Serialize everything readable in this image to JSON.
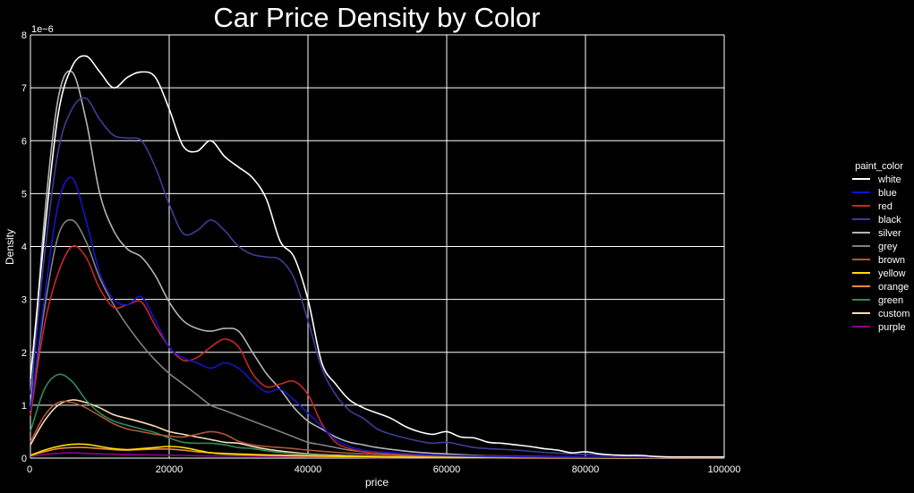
{
  "chart_data": {
    "type": "line",
    "title": "Car Price Density by Color",
    "xlabel": "price",
    "ylabel": "Density",
    "y_offset_label": "1e−6",
    "xlim": [
      0,
      100000
    ],
    "ylim": [
      0,
      8
    ],
    "x_ticks": [
      0,
      20000,
      40000,
      60000,
      80000,
      100000
    ],
    "x_tick_labels": [
      "0",
      "20000",
      "40000",
      "60000",
      "80000",
      "100000"
    ],
    "y_ticks": [
      0,
      1,
      2,
      3,
      4,
      5,
      6,
      7,
      8
    ],
    "y_tick_labels": [
      "0",
      "1",
      "2",
      "3",
      "4",
      "5",
      "6",
      "7",
      "8"
    ],
    "grid": true,
    "background": "#000000",
    "legend": {
      "title": "paint_color",
      "position": "right"
    },
    "series": [
      {
        "name": "white",
        "color": "#ffffff",
        "x": [
          0,
          2000,
          4000,
          6000,
          8000,
          10000,
          12000,
          14000,
          16000,
          18000,
          20000,
          22000,
          24000,
          26000,
          28000,
          30000,
          32000,
          34000,
          36000,
          38000,
          40000,
          42000,
          44000,
          46000,
          48000,
          50000,
          52000,
          54000,
          56000,
          58000,
          60000,
          62000,
          64000,
          66000,
          68000,
          70000,
          72000,
          74000,
          76000,
          78000,
          80000,
          82000,
          84000,
          86000,
          88000,
          90000,
          92000,
          94000,
          96000,
          98000,
          100000
        ],
        "y": [
          1.5,
          4.2,
          6.5,
          7.4,
          7.6,
          7.3,
          7.0,
          7.2,
          7.3,
          7.2,
          6.6,
          5.9,
          5.8,
          6.0,
          5.7,
          5.5,
          5.3,
          4.9,
          4.1,
          3.8,
          3.0,
          1.8,
          1.4,
          1.1,
          0.95,
          0.85,
          0.75,
          0.6,
          0.5,
          0.45,
          0.5,
          0.4,
          0.38,
          0.3,
          0.28,
          0.25,
          0.22,
          0.18,
          0.15,
          0.1,
          0.12,
          0.08,
          0.06,
          0.05,
          0.05,
          0.03,
          0.02,
          0.02,
          0.02,
          0.02,
          0.02
        ]
      },
      {
        "name": "blue",
        "color": "#1515c8",
        "x": [
          0,
          2000,
          4000,
          6000,
          8000,
          10000,
          12000,
          14000,
          16000,
          18000,
          20000,
          22000,
          24000,
          26000,
          28000,
          30000,
          32000,
          34000,
          36000,
          38000,
          40000,
          42000,
          44000,
          46000,
          48000,
          50000,
          55000,
          60000,
          70000,
          80000,
          90000,
          100000
        ],
        "y": [
          0.9,
          3.0,
          4.8,
          5.3,
          4.5,
          3.5,
          3.0,
          2.9,
          3.05,
          2.6,
          2.1,
          1.9,
          1.8,
          1.7,
          1.8,
          1.7,
          1.45,
          1.25,
          1.3,
          1.1,
          0.85,
          0.6,
          0.35,
          0.22,
          0.15,
          0.12,
          0.08,
          0.05,
          0.03,
          0.02,
          0.01,
          0.01
        ]
      },
      {
        "name": "red",
        "color": "#c82828",
        "x": [
          0,
          2000,
          4000,
          6000,
          8000,
          10000,
          12000,
          14000,
          16000,
          18000,
          20000,
          22000,
          24000,
          26000,
          28000,
          30000,
          32000,
          34000,
          36000,
          38000,
          40000,
          42000,
          44000,
          46000,
          48000,
          50000,
          55000,
          60000,
          70000,
          80000,
          90000,
          100000
        ],
        "y": [
          0.8,
          2.5,
          3.5,
          4.0,
          3.8,
          3.2,
          2.85,
          2.9,
          2.95,
          2.5,
          2.1,
          1.85,
          1.9,
          2.1,
          2.25,
          2.1,
          1.6,
          1.35,
          1.4,
          1.45,
          1.2,
          0.65,
          0.3,
          0.18,
          0.12,
          0.1,
          0.07,
          0.05,
          0.04,
          0.02,
          0.01,
          0.01
        ]
      },
      {
        "name": "black",
        "color": "#3d3d9a",
        "x": [
          0,
          2000,
          4000,
          6000,
          8000,
          10000,
          12000,
          14000,
          16000,
          18000,
          20000,
          22000,
          24000,
          26000,
          28000,
          30000,
          32000,
          34000,
          36000,
          38000,
          40000,
          42000,
          44000,
          46000,
          48000,
          50000,
          52000,
          54000,
          56000,
          58000,
          60000,
          62000,
          64000,
          66000,
          70000,
          75000,
          80000,
          85000,
          90000,
          95000,
          100000
        ],
        "y": [
          1.2,
          3.8,
          5.8,
          6.6,
          6.8,
          6.4,
          6.1,
          6.05,
          6.0,
          5.5,
          4.8,
          4.25,
          4.3,
          4.5,
          4.3,
          4.0,
          3.85,
          3.8,
          3.75,
          3.4,
          2.6,
          1.7,
          1.2,
          0.9,
          0.75,
          0.55,
          0.45,
          0.38,
          0.32,
          0.28,
          0.3,
          0.25,
          0.2,
          0.18,
          0.15,
          0.1,
          0.07,
          0.05,
          0.03,
          0.02,
          0.02
        ]
      },
      {
        "name": "silver",
        "color": "#b4b4b4",
        "x": [
          0,
          2000,
          4000,
          6000,
          8000,
          10000,
          12000,
          14000,
          16000,
          18000,
          20000,
          22000,
          24000,
          26000,
          28000,
          30000,
          32000,
          34000,
          36000,
          38000,
          40000,
          42000,
          44000,
          46000,
          48000,
          50000,
          55000,
          60000,
          65000,
          70000,
          80000,
          90000,
          100000
        ],
        "y": [
          1.0,
          4.5,
          6.8,
          7.3,
          6.4,
          5.0,
          4.3,
          3.95,
          3.8,
          3.45,
          2.95,
          2.6,
          2.45,
          2.4,
          2.45,
          2.4,
          2.0,
          1.6,
          1.3,
          0.95,
          0.7,
          0.55,
          0.4,
          0.3,
          0.25,
          0.2,
          0.12,
          0.08,
          0.05,
          0.03,
          0.02,
          0.01,
          0.01
        ]
      },
      {
        "name": "grey",
        "color": "#808080",
        "x": [
          0,
          2000,
          4000,
          6000,
          8000,
          10000,
          12000,
          14000,
          16000,
          18000,
          20000,
          22000,
          24000,
          26000,
          28000,
          30000,
          32000,
          34000,
          36000,
          38000,
          40000,
          42000,
          44000,
          46000,
          48000,
          50000,
          55000,
          60000,
          70000,
          80000,
          90000,
          100000
        ],
        "y": [
          0.9,
          2.8,
          4.2,
          4.5,
          4.1,
          3.4,
          2.9,
          2.5,
          2.15,
          1.85,
          1.6,
          1.4,
          1.2,
          1.0,
          0.9,
          0.8,
          0.7,
          0.6,
          0.5,
          0.4,
          0.3,
          0.25,
          0.2,
          0.15,
          0.12,
          0.1,
          0.06,
          0.04,
          0.02,
          0.01,
          0.01,
          0.01
        ]
      },
      {
        "name": "brown",
        "color": "#b0553a",
        "x": [
          0,
          2000,
          4000,
          6000,
          8000,
          10000,
          12000,
          14000,
          16000,
          18000,
          20000,
          22000,
          24000,
          26000,
          28000,
          30000,
          32000,
          34000,
          36000,
          38000,
          40000,
          45000,
          50000,
          55000,
          60000,
          70000,
          80000,
          90000,
          100000
        ],
        "y": [
          0.3,
          0.8,
          1.05,
          1.05,
          0.95,
          0.8,
          0.65,
          0.55,
          0.5,
          0.45,
          0.42,
          0.4,
          0.45,
          0.5,
          0.45,
          0.32,
          0.25,
          0.22,
          0.2,
          0.18,
          0.15,
          0.1,
          0.07,
          0.05,
          0.04,
          0.02,
          0.01,
          0.01,
          0.01
        ]
      },
      {
        "name": "yellow",
        "color": "#ffdd00",
        "x": [
          0,
          2000,
          4000,
          6000,
          8000,
          10000,
          12000,
          14000,
          16000,
          18000,
          20000,
          22000,
          24000,
          26000,
          28000,
          30000,
          35000,
          40000,
          45000,
          50000,
          60000,
          70000,
          80000,
          90000,
          100000
        ],
        "y": [
          0.05,
          0.15,
          0.22,
          0.26,
          0.26,
          0.22,
          0.18,
          0.16,
          0.18,
          0.2,
          0.22,
          0.2,
          0.15,
          0.1,
          0.08,
          0.07,
          0.05,
          0.04,
          0.03,
          0.02,
          0.01,
          0.01,
          0.0,
          0.0,
          0.0
        ]
      },
      {
        "name": "orange",
        "color": "#f08a3c",
        "x": [
          0,
          2000,
          4000,
          6000,
          8000,
          10000,
          12000,
          14000,
          16000,
          18000,
          20000,
          22000,
          24000,
          26000,
          28000,
          30000,
          35000,
          40000,
          45000,
          50000,
          60000,
          70000,
          80000,
          90000,
          100000
        ],
        "y": [
          0.05,
          0.12,
          0.18,
          0.2,
          0.2,
          0.18,
          0.16,
          0.15,
          0.16,
          0.17,
          0.17,
          0.15,
          0.12,
          0.1,
          0.09,
          0.08,
          0.06,
          0.05,
          0.04,
          0.03,
          0.02,
          0.01,
          0.01,
          0.0,
          0.0
        ]
      },
      {
        "name": "green",
        "color": "#2e8b57",
        "x": [
          0,
          2000,
          4000,
          6000,
          8000,
          10000,
          12000,
          14000,
          16000,
          18000,
          20000,
          22000,
          24000,
          26000,
          28000,
          30000,
          32000,
          35000,
          40000,
          45000,
          50000,
          60000,
          70000,
          80000,
          90000,
          100000
        ],
        "y": [
          0.5,
          1.3,
          1.58,
          1.45,
          1.1,
          0.85,
          0.7,
          0.62,
          0.55,
          0.48,
          0.38,
          0.3,
          0.28,
          0.28,
          0.25,
          0.2,
          0.18,
          0.12,
          0.07,
          0.04,
          0.02,
          0.01,
          0.01,
          0.0,
          0.0,
          0.0
        ]
      },
      {
        "name": "custom",
        "color": "#f5deb3",
        "x": [
          0,
          2000,
          4000,
          6000,
          8000,
          10000,
          12000,
          14000,
          16000,
          18000,
          20000,
          22000,
          24000,
          26000,
          28000,
          30000,
          32000,
          35000,
          40000,
          45000,
          50000,
          60000,
          70000,
          80000,
          90000,
          100000
        ],
        "y": [
          0.25,
          0.7,
          1.0,
          1.1,
          1.05,
          0.95,
          0.82,
          0.75,
          0.68,
          0.6,
          0.5,
          0.45,
          0.4,
          0.35,
          0.3,
          0.28,
          0.22,
          0.15,
          0.08,
          0.05,
          0.03,
          0.02,
          0.01,
          0.01,
          0.0,
          0.0
        ]
      },
      {
        "name": "purple",
        "color": "#8b008b",
        "x": [
          0,
          2000,
          4000,
          6000,
          8000,
          10000,
          14000,
          18000,
          22000,
          26000,
          30000,
          35000,
          40000,
          45000,
          50000,
          60000,
          70000,
          80000,
          90000,
          100000
        ],
        "y": [
          0.03,
          0.07,
          0.09,
          0.1,
          0.09,
          0.08,
          0.07,
          0.06,
          0.05,
          0.04,
          0.04,
          0.03,
          0.02,
          0.02,
          0.01,
          0.01,
          0.0,
          0.0,
          0.0,
          0.0
        ]
      }
    ]
  }
}
